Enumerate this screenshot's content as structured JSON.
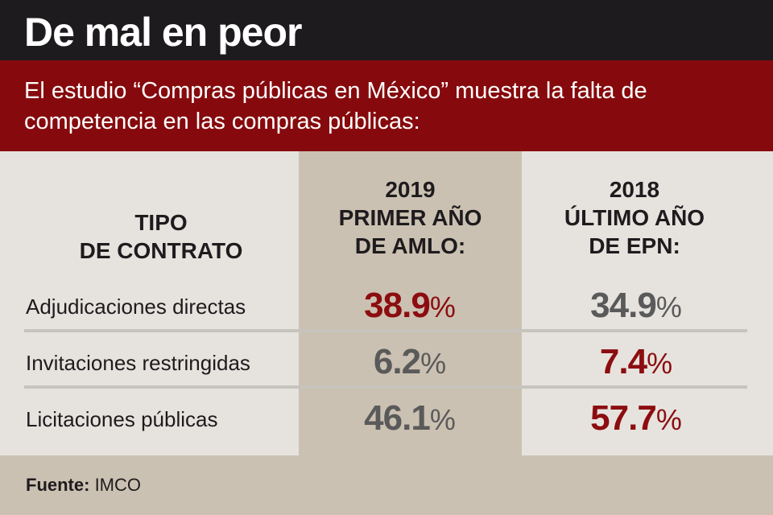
{
  "title": "De mal en peor",
  "subtitle": "El estudio “Compras públicas en México” muestra la falta de competencia en las compras públicas:",
  "columns": {
    "tipo": [
      "TIPO",
      "DE CONTRATO"
    ],
    "y2019": [
      "2019",
      "PRIMER AÑO",
      "DE AMLO:"
    ],
    "y2018": [
      "2018",
      "ÚLTIMO AÑO",
      "DE EPN:"
    ]
  },
  "colors": {
    "header": "#1e1b1e",
    "accent": "#860a0d",
    "highlight": "#8c0d10",
    "neutral": "#5a5a5a",
    "band": "#cbc1b2",
    "background": "#e6e3de"
  },
  "chart_data": {
    "type": "table",
    "title": "De mal en peor",
    "unit": "%",
    "categories": [
      "Adjudicaciones directas",
      "Invitaciones restringidas",
      "Licitaciones públicas"
    ],
    "series": [
      {
        "name": "2019 PRIMER AÑO DE AMLO:",
        "values": [
          38.9,
          6.2,
          46.1
        ],
        "display": [
          "38.9",
          "6.2",
          "46.1"
        ],
        "highlight": [
          true,
          false,
          false
        ]
      },
      {
        "name": "2018 ÚLTIMO AÑO DE EPN:",
        "values": [
          34.9,
          7.4,
          57.7
        ],
        "display": [
          "34.9",
          "7.4",
          "57.7"
        ],
        "highlight": [
          false,
          true,
          true
        ]
      }
    ]
  },
  "footer": {
    "source_label": "Fuente:",
    "source_value": " IMCO"
  }
}
